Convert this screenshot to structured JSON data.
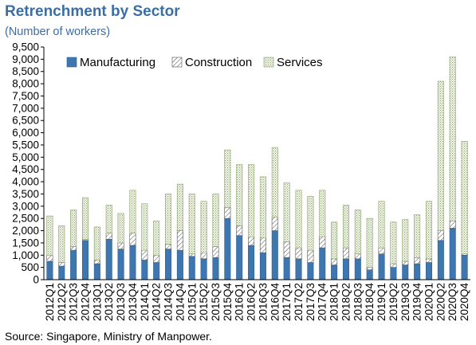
{
  "title": "Retrenchment by Sector",
  "subtitle": "(Number of workers)",
  "source": "Source: Singapore, Ministry of Manpower.",
  "colors": {
    "manufacturing": "#3e77b0",
    "construction_stroke": "#555555",
    "services_stroke": "#8aa06a",
    "axis": "#000000"
  },
  "chart_data": {
    "type": "bar",
    "stacked": true,
    "ylim": [
      0,
      9500
    ],
    "ytick_step": 500,
    "legend_position": "top-left",
    "categories": [
      "2012Q1",
      "2012Q2",
      "2012Q3",
      "2012Q4",
      "2013Q1",
      "2013Q2",
      "2013Q3",
      "2013Q4",
      "2014Q1",
      "2014Q2",
      "2014Q3",
      "2014Q4",
      "2015Q1",
      "2015Q2",
      "2015Q3",
      "2015Q4",
      "2016Q1",
      "2016Q2",
      "2016Q3",
      "2016Q4",
      "2017Q1",
      "2017Q2",
      "2017Q3",
      "2017Q4",
      "2018Q1",
      "2018Q2",
      "2018Q3",
      "2018Q4",
      "2019Q1",
      "2019Q2",
      "2019Q3",
      "2019Q4",
      "2020Q1",
      "2020Q2",
      "2020Q3",
      "2020Q4"
    ],
    "series": [
      {
        "name": "Manufacturing",
        "values": [
          750,
          550,
          1200,
          1600,
          650,
          1650,
          1250,
          1400,
          800,
          700,
          1250,
          1200,
          950,
          850,
          900,
          2500,
          1800,
          1400,
          1100,
          2000,
          900,
          850,
          700,
          1300,
          600,
          850,
          850,
          400,
          1050,
          500,
          600,
          650,
          700,
          1600,
          2100,
          1000
        ]
      },
      {
        "name": "Construction",
        "values": [
          250,
          150,
          150,
          50,
          150,
          250,
          250,
          500,
          400,
          300,
          200,
          800,
          100,
          250,
          450,
          450,
          400,
          350,
          600,
          550,
          650,
          450,
          500,
          450,
          250,
          450,
          200,
          100,
          250,
          150,
          150,
          250,
          150,
          400,
          300,
          50
        ]
      },
      {
        "name": "Services",
        "values": [
          1600,
          1500,
          1500,
          1700,
          1350,
          1150,
          1200,
          1750,
          1900,
          1400,
          2050,
          1900,
          2450,
          2100,
          2150,
          2350,
          2500,
          2950,
          2500,
          2850,
          2400,
          2350,
          2200,
          1900,
          1500,
          1750,
          1800,
          2000,
          1900,
          1700,
          1700,
          1750,
          2350,
          6100,
          6700,
          4600
        ]
      }
    ]
  }
}
